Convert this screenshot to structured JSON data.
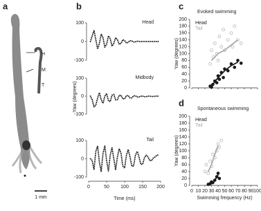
{
  "image_panel": {
    "label": "a",
    "markers": [
      "H",
      "M",
      "T"
    ],
    "scale_bar": "1 mm"
  },
  "chart_data": [
    {
      "type": "line",
      "panel": "b",
      "annotation": "Head",
      "color": "#222222",
      "xlim": [
        0,
        200
      ],
      "ylim": [
        -100,
        100
      ],
      "yticks": [
        -100,
        0,
        100
      ],
      "x": [
        5,
        10,
        15,
        20,
        25,
        30,
        35,
        40,
        45,
        50,
        55,
        60,
        65,
        70,
        75,
        80,
        85,
        90,
        95,
        100,
        105,
        110,
        115,
        120,
        125,
        130,
        135,
        140,
        145,
        150,
        155,
        160,
        165,
        170,
        175,
        180,
        185,
        190,
        195
      ],
      "values": [
        0,
        30,
        60,
        10,
        -40,
        -10,
        40,
        20,
        -30,
        -15,
        30,
        15,
        -25,
        -10,
        20,
        10,
        -15,
        -10,
        10,
        5,
        -8,
        -5,
        5,
        3,
        -3,
        -2,
        2,
        0,
        0,
        0,
        0,
        0,
        0,
        0,
        0,
        0,
        0,
        0,
        0
      ]
    },
    {
      "type": "line",
      "annotation": "Midbody",
      "ylabel": "Yaw (degrees)",
      "color": "#222222",
      "xlim": [
        0,
        200
      ],
      "ylim": [
        -100,
        100
      ],
      "yticks": [
        -100,
        0,
        100
      ],
      "x": [
        5,
        10,
        15,
        20,
        25,
        30,
        35,
        40,
        45,
        50,
        55,
        60,
        65,
        70,
        75,
        80,
        85,
        90,
        95,
        100,
        105,
        110,
        115,
        120,
        125,
        130,
        135,
        140,
        145,
        150,
        155,
        160,
        165,
        170,
        175,
        180,
        185,
        190,
        195
      ],
      "values": [
        0,
        -20,
        -60,
        -50,
        -10,
        20,
        -20,
        -40,
        0,
        15,
        -25,
        -30,
        5,
        10,
        -20,
        -20,
        5,
        5,
        -15,
        -15,
        3,
        3,
        -10,
        -10,
        2,
        2,
        -5,
        -5,
        0,
        0,
        -3,
        -3,
        0,
        0,
        -2,
        -2,
        0,
        0,
        0
      ]
    },
    {
      "type": "line",
      "annotation": "Tail",
      "xlabel": "Time (ms)",
      "color": "#222222",
      "xlim": [
        0,
        200
      ],
      "xticks": [
        0,
        50,
        100,
        150,
        200
      ],
      "ylim": [
        -100,
        100
      ],
      "yticks": [
        -100,
        0,
        100
      ],
      "x": [
        5,
        10,
        15,
        20,
        25,
        30,
        35,
        40,
        45,
        50,
        55,
        60,
        65,
        70,
        75,
        80,
        85,
        90,
        95,
        100,
        105,
        110,
        115,
        120,
        125,
        130,
        135,
        140,
        145,
        150,
        155,
        160,
        165,
        170,
        175,
        180,
        185,
        190,
        195
      ],
      "values": [
        0,
        -10,
        -60,
        40,
        70,
        -20,
        -70,
        30,
        70,
        -10,
        -70,
        20,
        60,
        0,
        -60,
        10,
        55,
        30,
        -40,
        -50,
        20,
        50,
        10,
        -40,
        -40,
        20,
        40,
        10,
        -30,
        -30,
        5,
        20,
        10,
        -10,
        -10,
        5,
        10,
        20,
        20
      ]
    },
    {
      "type": "scatter",
      "panel": "c",
      "title": "Evoked swimming",
      "ylabel": "Yaw (degrees)",
      "xlim": [
        0,
        100
      ],
      "xticks": [
        0,
        10,
        20,
        30,
        40,
        50,
        60,
        70,
        80,
        90,
        100
      ],
      "ylim": [
        0,
        200
      ],
      "yticks": [
        0,
        20,
        40,
        60,
        80,
        100,
        120,
        140,
        160,
        180,
        200
      ],
      "xtick_labels": false,
      "series": [
        {
          "name": "Head",
          "color": "#1a1a1a",
          "marker": "filled",
          "x": [
            28,
            30,
            32,
            35,
            38,
            40,
            42,
            45,
            48,
            50,
            55,
            60,
            65,
            70,
            75
          ],
          "values": [
            5,
            2,
            10,
            20,
            15,
            35,
            25,
            45,
            30,
            55,
            50,
            70,
            60,
            80,
            72
          ],
          "fit_x": [
            30,
            40,
            50,
            60,
            70
          ],
          "fit_values": [
            5,
            30,
            50,
            65,
            75
          ]
        },
        {
          "name": "Tail",
          "color": "#aaaaaa",
          "marker": "open",
          "x": [
            28,
            30,
            33,
            35,
            38,
            40,
            42,
            45,
            48,
            50,
            55,
            60,
            62,
            65,
            70,
            75
          ],
          "values": [
            70,
            110,
            90,
            130,
            100,
            80,
            150,
            120,
            170,
            110,
            140,
            160,
            120,
            180,
            140,
            130
          ],
          "fit_x": [
            30,
            40,
            50,
            60,
            70
          ],
          "fit_values": [
            80,
            100,
            110,
            125,
            140
          ]
        }
      ]
    },
    {
      "type": "scatter",
      "panel": "d",
      "title": "Spontaneous swimming",
      "ylabel": "Yaw (degrees)",
      "xlabel": "Swimming frequency (Hz)",
      "xlim": [
        0,
        100
      ],
      "xticks": [
        0,
        10,
        20,
        30,
        40,
        50,
        60,
        70,
        80,
        90,
        100
      ],
      "ylim": [
        0,
        200
      ],
      "yticks": [
        0,
        20,
        40,
        60,
        80,
        100,
        120,
        140,
        160,
        180,
        200
      ],
      "xtick_labels": true,
      "series": [
        {
          "name": "Head",
          "color": "#1a1a1a",
          "marker": "filled",
          "x": [
            25,
            28,
            30,
            32,
            35,
            38,
            40,
            42
          ],
          "values": [
            3,
            5,
            10,
            8,
            15,
            25,
            35,
            20
          ],
          "fit_x": [
            30,
            35,
            40
          ],
          "fit_values": [
            5,
            15,
            30
          ]
        },
        {
          "name": "Tail",
          "color": "#aaaaaa",
          "marker": "open",
          "x": [
            20,
            22,
            25,
            28,
            30,
            32,
            35,
            38,
            40,
            42,
            45
          ],
          "values": [
            40,
            60,
            35,
            70,
            55,
            90,
            80,
            100,
            120,
            110,
            130
          ],
          "fit_x": [
            25,
            30,
            35,
            40
          ],
          "fit_values": [
            40,
            60,
            90,
            115
          ]
        }
      ]
    }
  ]
}
